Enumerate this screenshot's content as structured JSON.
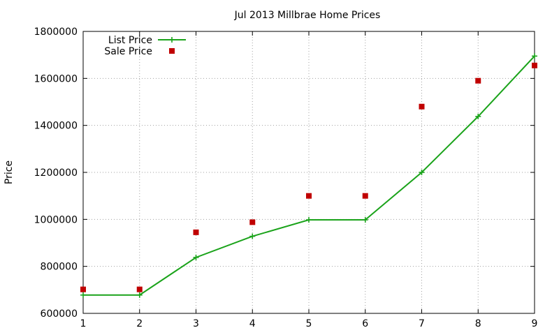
{
  "chart_data": {
    "type": "line",
    "title": "Jul 2013 Millbrae Home Prices",
    "xlabel": "",
    "ylabel": "Price",
    "x": [
      1,
      2,
      3,
      4,
      5,
      6,
      7,
      8,
      9
    ],
    "xlim": [
      1,
      9
    ],
    "ylim": [
      600000,
      1800000
    ],
    "xticks": [
      1,
      2,
      3,
      4,
      5,
      6,
      7,
      8,
      9
    ],
    "yticks": [
      600000,
      800000,
      1000000,
      1200000,
      1400000,
      1600000,
      1800000
    ],
    "grid": true,
    "legend_position": "top-left",
    "series": [
      {
        "name": "List Price",
        "style": "line-with-plus-markers",
        "color": "#1aa31a",
        "values": [
          678000,
          678000,
          838000,
          928000,
          998000,
          998000,
          1200000,
          1438000,
          1695000
        ]
      },
      {
        "name": "Sale Price",
        "style": "square-markers",
        "color": "#c00000",
        "values": [
          702000,
          702000,
          945000,
          988000,
          1100000,
          1100000,
          1480000,
          1590000,
          1655000
        ]
      }
    ]
  }
}
